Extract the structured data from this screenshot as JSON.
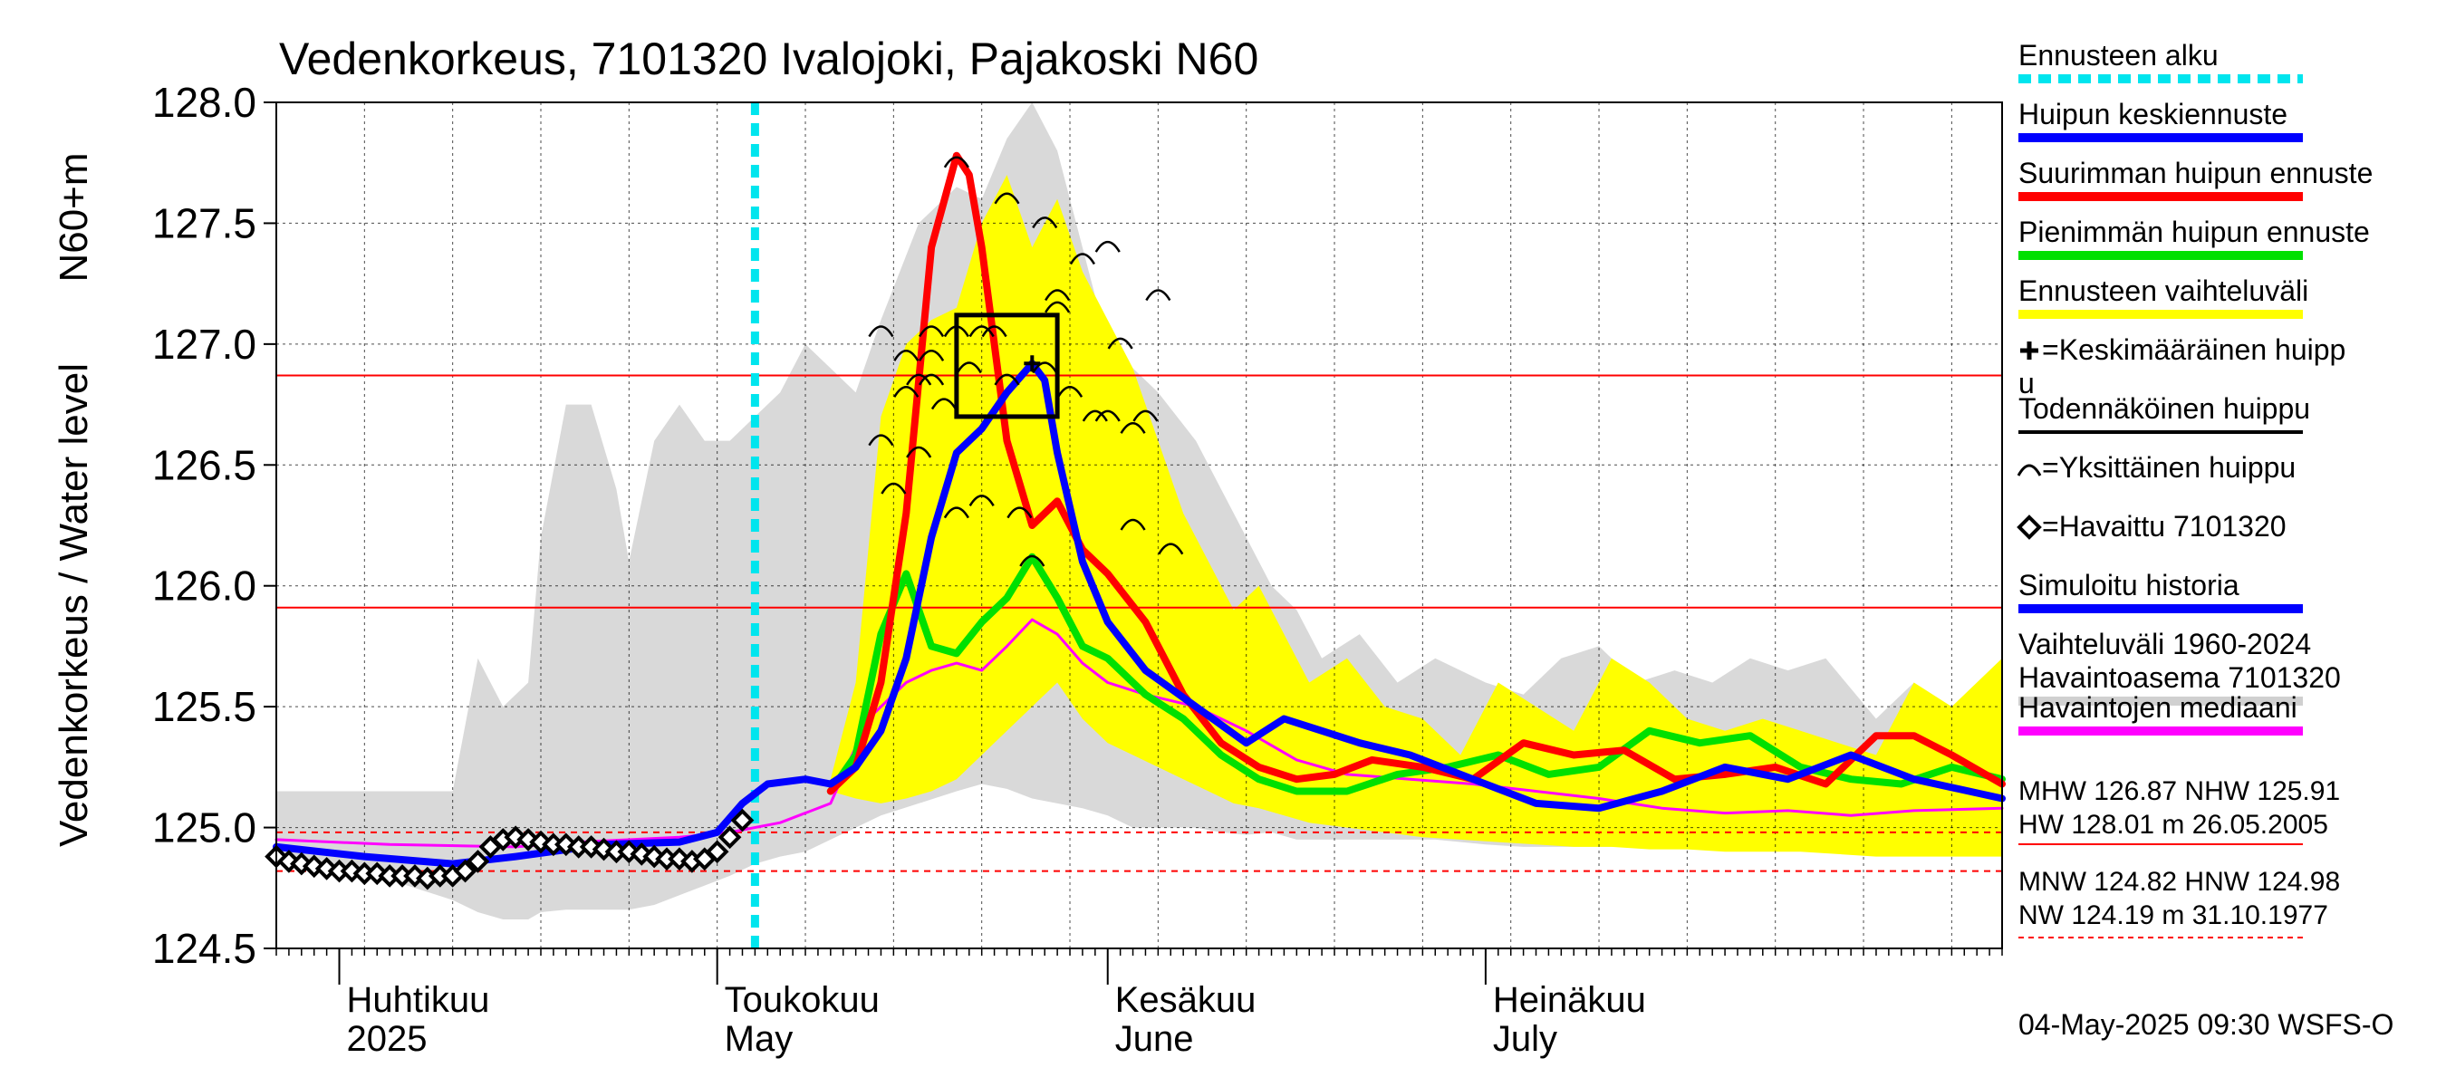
{
  "chart_data": {
    "type": "line",
    "title": "Vedenkorkeus, 7101320 Ivalojoki, Pajakoski N60",
    "ylabel": "Vedenkorkeus / Water level",
    "ylabel2": "N60+m",
    "ylim": [
      124.5,
      128.0
    ],
    "yticks": [
      "124.5",
      "125.0",
      "125.5",
      "126.0",
      "126.5",
      "127.0",
      "127.5",
      "128.0"
    ],
    "xlim": [
      "2025-03-27",
      "2025-08-11"
    ],
    "x_months": [
      {
        "fi": "Huhtikuu",
        "en": "2025",
        "date": "2025-04-01"
      },
      {
        "fi": "Toukokuu",
        "en": "May",
        "date": "2025-05-01"
      },
      {
        "fi": "Kesäkuu",
        "en": "June",
        "date": "2025-06-01"
      },
      {
        "fi": "Heinäkuu",
        "en": "July",
        "date": "2025-07-01"
      }
    ],
    "forecast_start": "2025-05-04",
    "reference_lines": [
      {
        "name": "MHW",
        "value": 126.87,
        "style": "solid"
      },
      {
        "name": "NHW",
        "value": 125.91,
        "style": "solid"
      },
      {
        "name": "MNW",
        "value": 124.82,
        "style": "dashed"
      },
      {
        "name": "HNW",
        "value": 124.98,
        "style": "dashed"
      }
    ],
    "historical_range": {
      "x": [
        "2025-03-27",
        "2025-04-04",
        "2025-04-10",
        "2025-04-12",
        "2025-04-14",
        "2025-04-16",
        "2025-04-17",
        "2025-04-19",
        "2025-04-21",
        "2025-04-23",
        "2025-04-24",
        "2025-04-26",
        "2025-04-28",
        "2025-04-30",
        "2025-05-02",
        "2025-05-04",
        "2025-05-06",
        "2025-05-08",
        "2025-05-10",
        "2025-05-12",
        "2025-05-14",
        "2025-05-17",
        "2025-05-20",
        "2025-05-22",
        "2025-05-24",
        "2025-05-26",
        "2025-05-28",
        "2025-05-30",
        "2025-06-01",
        "2025-06-03",
        "2025-06-05",
        "2025-06-08",
        "2025-06-10",
        "2025-06-12",
        "2025-06-14",
        "2025-06-16",
        "2025-06-18",
        "2025-06-21",
        "2025-06-24",
        "2025-06-27",
        "2025-07-01",
        "2025-07-04",
        "2025-07-07",
        "2025-07-10",
        "2025-07-13",
        "2025-07-16",
        "2025-07-19",
        "2025-07-22",
        "2025-07-25",
        "2025-07-28",
        "2025-08-01",
        "2025-08-04",
        "2025-08-07",
        "2025-08-11"
      ],
      "upper": [
        125.15,
        125.15,
        125.15,
        125.7,
        125.5,
        125.6,
        126.2,
        126.75,
        126.75,
        126.4,
        126.1,
        126.6,
        126.75,
        126.6,
        126.6,
        126.7,
        126.8,
        127.0,
        126.9,
        126.8,
        127.1,
        127.5,
        127.65,
        127.6,
        127.85,
        128.0,
        127.8,
        127.4,
        127.0,
        126.9,
        126.8,
        126.6,
        126.4,
        126.2,
        126.0,
        125.9,
        125.7,
        125.8,
        125.6,
        125.7,
        125.6,
        125.55,
        125.7,
        125.75,
        125.6,
        125.65,
        125.6,
        125.7,
        125.65,
        125.7,
        125.45,
        125.6,
        125.4,
        125.6
      ],
      "lower": [
        124.85,
        124.8,
        124.7,
        124.65,
        124.62,
        124.62,
        124.65,
        124.66,
        124.66,
        124.66,
        124.66,
        124.68,
        124.72,
        124.76,
        124.8,
        124.85,
        124.88,
        124.9,
        124.95,
        125.0,
        125.05,
        125.1,
        125.15,
        125.18,
        125.16,
        125.12,
        125.1,
        125.08,
        125.05,
        125.0,
        125.0,
        125.0,
        124.98,
        124.97,
        124.98,
        124.95,
        124.95,
        124.95,
        124.95,
        124.95,
        124.93,
        124.92,
        124.92,
        124.92,
        124.92,
        124.92,
        124.91,
        124.91,
        124.91,
        124.91,
        124.91,
        124.91,
        124.91,
        124.91
      ]
    },
    "forecast_range": {
      "x": [
        "2025-05-10",
        "2025-05-12",
        "2025-05-14",
        "2025-05-16",
        "2025-05-18",
        "2025-05-20",
        "2025-05-22",
        "2025-05-24",
        "2025-05-26",
        "2025-05-28",
        "2025-05-30",
        "2025-06-01",
        "2025-06-03",
        "2025-06-05",
        "2025-06-07",
        "2025-06-09",
        "2025-06-11",
        "2025-06-13",
        "2025-06-15",
        "2025-06-17",
        "2025-06-20",
        "2025-06-23",
        "2025-06-26",
        "2025-06-29",
        "2025-07-02",
        "2025-07-05",
        "2025-07-08",
        "2025-07-11",
        "2025-07-14",
        "2025-07-17",
        "2025-07-20",
        "2025-07-23",
        "2025-07-26",
        "2025-07-29",
        "2025-08-01",
        "2025-08-04",
        "2025-08-07",
        "2025-08-11"
      ],
      "upper": [
        125.2,
        125.6,
        126.7,
        127.0,
        127.1,
        127.15,
        127.5,
        127.7,
        127.4,
        127.6,
        127.3,
        127.1,
        126.9,
        126.6,
        126.3,
        126.1,
        125.9,
        126.0,
        125.8,
        125.6,
        125.7,
        125.5,
        125.45,
        125.3,
        125.6,
        125.5,
        125.4,
        125.7,
        125.6,
        125.45,
        125.4,
        125.45,
        125.4,
        125.35,
        125.3,
        125.6,
        125.5,
        125.7
      ],
      "lower": [
        125.15,
        125.12,
        125.1,
        125.12,
        125.15,
        125.2,
        125.3,
        125.4,
        125.5,
        125.6,
        125.45,
        125.35,
        125.3,
        125.25,
        125.2,
        125.15,
        125.1,
        125.08,
        125.05,
        125.02,
        125.0,
        124.98,
        124.96,
        124.95,
        124.94,
        124.93,
        124.92,
        124.92,
        124.91,
        124.91,
        124.9,
        124.9,
        124.9,
        124.89,
        124.88,
        124.88,
        124.88,
        124.88
      ]
    },
    "series": [
      {
        "name": "Havaittu 7101320",
        "role": "observed",
        "color": "#000000",
        "x": [
          "2025-03-27",
          "2025-03-28",
          "2025-03-29",
          "2025-03-30",
          "2025-03-31",
          "2025-04-01",
          "2025-04-02",
          "2025-04-03",
          "2025-04-04",
          "2025-04-05",
          "2025-04-06",
          "2025-04-07",
          "2025-04-08",
          "2025-04-09",
          "2025-04-10",
          "2025-04-11",
          "2025-04-12",
          "2025-04-13",
          "2025-04-14",
          "2025-04-15",
          "2025-04-16",
          "2025-04-17",
          "2025-04-18",
          "2025-04-19",
          "2025-04-20",
          "2025-04-21",
          "2025-04-22",
          "2025-04-23",
          "2025-04-24",
          "2025-04-25",
          "2025-04-26",
          "2025-04-27",
          "2025-04-28",
          "2025-04-29",
          "2025-04-30",
          "2025-05-01",
          "2025-05-02",
          "2025-05-03"
        ],
        "values": [
          124.88,
          124.86,
          124.85,
          124.84,
          124.83,
          124.82,
          124.82,
          124.81,
          124.81,
          124.8,
          124.8,
          124.8,
          124.79,
          124.8,
          124.8,
          124.82,
          124.86,
          124.92,
          124.95,
          124.96,
          124.95,
          124.94,
          124.93,
          124.93,
          124.92,
          124.92,
          124.91,
          124.9,
          124.9,
          124.89,
          124.88,
          124.87,
          124.87,
          124.86,
          124.87,
          124.9,
          124.96,
          125.03
        ]
      },
      {
        "name": "Vaihteluväli 1960-2024 Havaintoasema 7101320",
        "role": "range",
        "color": "#d9d9d9"
      },
      {
        "name": "Havaintojen mediaani",
        "role": "median",
        "color": "#ff00ff",
        "x": [
          "2025-03-27",
          "2025-04-05",
          "2025-04-15",
          "2025-04-20",
          "2025-04-28",
          "2025-05-02",
          "2025-05-06",
          "2025-05-10",
          "2025-05-13",
          "2025-05-16",
          "2025-05-18",
          "2025-05-20",
          "2025-05-22",
          "2025-05-24",
          "2025-05-26",
          "2025-05-28",
          "2025-05-30",
          "2025-06-01",
          "2025-06-04",
          "2025-06-08",
          "2025-06-12",
          "2025-06-16",
          "2025-06-20",
          "2025-06-25",
          "2025-06-30",
          "2025-07-05",
          "2025-07-10",
          "2025-07-15",
          "2025-07-20",
          "2025-07-25",
          "2025-07-30",
          "2025-08-04",
          "2025-08-11"
        ],
        "values": [
          124.95,
          124.93,
          124.92,
          124.94,
          124.96,
          124.98,
          125.02,
          125.1,
          125.45,
          125.6,
          125.65,
          125.68,
          125.65,
          125.75,
          125.86,
          125.8,
          125.68,
          125.6,
          125.55,
          125.5,
          125.4,
          125.28,
          125.22,
          125.2,
          125.18,
          125.15,
          125.12,
          125.08,
          125.06,
          125.07,
          125.05,
          125.07,
          125.08
        ]
      },
      {
        "name": "Simuloitu historia",
        "role": "simulated",
        "color": "#0000ff",
        "x": [
          "2025-03-27",
          "2025-04-03",
          "2025-04-10",
          "2025-04-15",
          "2025-04-22",
          "2025-04-28",
          "2025-05-01",
          "2025-05-03",
          "2025-05-05",
          "2025-05-08",
          "2025-05-10",
          "2025-05-12",
          "2025-05-14",
          "2025-05-16",
          "2025-05-18",
          "2025-05-20",
          "2025-05-22",
          "2025-05-24",
          "2025-05-26",
          "2025-05-27",
          "2025-05-28",
          "2025-05-30",
          "2025-06-01",
          "2025-06-04",
          "2025-06-08",
          "2025-06-12",
          "2025-06-15",
          "2025-06-18",
          "2025-06-21",
          "2025-06-25",
          "2025-06-30",
          "2025-07-05",
          "2025-07-10",
          "2025-07-15",
          "2025-07-20",
          "2025-07-25",
          "2025-07-30",
          "2025-08-04",
          "2025-08-11"
        ],
        "values": [
          124.92,
          124.88,
          124.85,
          124.88,
          124.93,
          124.94,
          124.98,
          125.1,
          125.18,
          125.2,
          125.18,
          125.25,
          125.4,
          125.7,
          126.2,
          126.55,
          126.65,
          126.8,
          126.92,
          126.85,
          126.55,
          126.1,
          125.85,
          125.65,
          125.5,
          125.35,
          125.45,
          125.4,
          125.35,
          125.3,
          125.2,
          125.1,
          125.08,
          125.15,
          125.25,
          125.2,
          125.3,
          125.2,
          125.12
        ]
      },
      {
        "name": "Huipun keskiennuste",
        "role": "mean_forecast",
        "color": "#0000ff"
      },
      {
        "name": "Suurimman huipun ennuste",
        "role": "max_forecast",
        "color": "#ff0000",
        "x": [
          "2025-05-10",
          "2025-05-12",
          "2025-05-14",
          "2025-05-16",
          "2025-05-18",
          "2025-05-20",
          "2025-05-21",
          "2025-05-22",
          "2025-05-24",
          "2025-05-26",
          "2025-05-28",
          "2025-05-30",
          "2025-06-01",
          "2025-06-04",
          "2025-06-07",
          "2025-06-10",
          "2025-06-13",
          "2025-06-16",
          "2025-06-19",
          "2025-06-22",
          "2025-06-26",
          "2025-06-30",
          "2025-07-04",
          "2025-07-08",
          "2025-07-12",
          "2025-07-16",
          "2025-07-20",
          "2025-07-24",
          "2025-07-28",
          "2025-08-01",
          "2025-08-04",
          "2025-08-07",
          "2025-08-11"
        ],
        "values": [
          125.15,
          125.25,
          125.6,
          126.3,
          127.4,
          127.78,
          127.7,
          127.4,
          126.6,
          126.25,
          126.35,
          126.15,
          126.05,
          125.85,
          125.55,
          125.35,
          125.25,
          125.2,
          125.22,
          125.28,
          125.25,
          125.2,
          125.35,
          125.3,
          125.32,
          125.2,
          125.22,
          125.25,
          125.18,
          125.38,
          125.38,
          125.3,
          125.18
        ]
      },
      {
        "name": "Pienimmän huipun ennuste",
        "role": "min_forecast",
        "color": "#00e000",
        "x": [
          "2025-05-10",
          "2025-05-12",
          "2025-05-14",
          "2025-05-16",
          "2025-05-18",
          "2025-05-20",
          "2025-05-22",
          "2025-05-24",
          "2025-05-26",
          "2025-05-28",
          "2025-05-30",
          "2025-06-01",
          "2025-06-04",
          "2025-06-07",
          "2025-06-10",
          "2025-06-13",
          "2025-06-16",
          "2025-06-20",
          "2025-06-24",
          "2025-06-28",
          "2025-07-02",
          "2025-07-06",
          "2025-07-10",
          "2025-07-14",
          "2025-07-18",
          "2025-07-22",
          "2025-07-26",
          "2025-07-30",
          "2025-08-03",
          "2025-08-07",
          "2025-08-11"
        ],
        "values": [
          125.15,
          125.3,
          125.8,
          126.05,
          125.75,
          125.72,
          125.85,
          125.95,
          126.12,
          125.95,
          125.75,
          125.7,
          125.55,
          125.45,
          125.3,
          125.2,
          125.15,
          125.15,
          125.22,
          125.25,
          125.3,
          125.22,
          125.25,
          125.4,
          125.35,
          125.38,
          125.25,
          125.2,
          125.18,
          125.25,
          125.2
        ]
      }
    ],
    "peak_box": {
      "x0": "2025-05-20",
      "x1": "2025-05-28",
      "y0": 126.7,
      "y1": 127.12
    },
    "mean_peak": {
      "x": "2025-05-26",
      "y": 126.92
    },
    "individual_peaks": [
      {
        "x": "2025-05-14",
        "y": 127.05
      },
      {
        "x": "2025-05-14",
        "y": 126.6
      },
      {
        "x": "2025-05-15",
        "y": 126.4
      },
      {
        "x": "2025-05-16",
        "y": 126.8
      },
      {
        "x": "2025-05-16",
        "y": 126.95
      },
      {
        "x": "2025-05-17",
        "y": 126.85
      },
      {
        "x": "2025-05-17",
        "y": 126.55
      },
      {
        "x": "2025-05-18",
        "y": 127.05
      },
      {
        "x": "2025-05-18",
        "y": 126.95
      },
      {
        "x": "2025-05-18",
        "y": 126.85
      },
      {
        "x": "2025-05-19",
        "y": 126.75
      },
      {
        "x": "2025-05-20",
        "y": 127.75
      },
      {
        "x": "2025-05-20",
        "y": 127.05
      },
      {
        "x": "2025-05-20",
        "y": 126.3
      },
      {
        "x": "2025-05-21",
        "y": 126.9
      },
      {
        "x": "2025-05-22",
        "y": 127.05
      },
      {
        "x": "2025-05-22",
        "y": 126.35
      },
      {
        "x": "2025-05-23",
        "y": 127.05
      },
      {
        "x": "2025-05-24",
        "y": 127.6
      },
      {
        "x": "2025-05-24",
        "y": 126.85
      },
      {
        "x": "2025-05-25",
        "y": 126.3
      },
      {
        "x": "2025-05-26",
        "y": 126.1
      },
      {
        "x": "2025-05-27",
        "y": 127.5
      },
      {
        "x": "2025-05-27",
        "y": 126.9
      },
      {
        "x": "2025-05-28",
        "y": 127.2
      },
      {
        "x": "2025-05-28",
        "y": 127.15
      },
      {
        "x": "2025-05-29",
        "y": 126.8
      },
      {
        "x": "2025-05-30",
        "y": 127.35
      },
      {
        "x": "2025-05-31",
        "y": 126.7
      },
      {
        "x": "2025-06-01",
        "y": 127.4
      },
      {
        "x": "2025-06-01",
        "y": 126.7
      },
      {
        "x": "2025-06-02",
        "y": 127.0
      },
      {
        "x": "2025-06-03",
        "y": 126.65
      },
      {
        "x": "2025-06-03",
        "y": 126.25
      },
      {
        "x": "2025-06-04",
        "y": 126.7
      },
      {
        "x": "2025-06-05",
        "y": 127.2
      },
      {
        "x": "2025-06-06",
        "y": 126.15
      }
    ],
    "legend": {
      "placement": "right",
      "items": [
        {
          "label": "Ennusteen alku",
          "kind": "dashed",
          "color": "#00e5ee"
        },
        {
          "label": "Huipun keskiennuste",
          "kind": "line",
          "color": "#0000ff"
        },
        {
          "label": "Suurimman huipun ennuste",
          "kind": "line",
          "color": "#ff0000"
        },
        {
          "label": "Pienimmän huipun ennuste",
          "kind": "line",
          "color": "#00e000"
        },
        {
          "label": "Ennusteen vaihteluväli",
          "kind": "line",
          "color": "#ffff00"
        },
        {
          "label": "=Keskimääräinen huipp",
          "label2": "u",
          "kind": "plus",
          "color": "#000000"
        },
        {
          "label": "Todennäköinen huippu",
          "kind": "line",
          "color": "#000000"
        },
        {
          "label": "=Yksittäinen huippu",
          "kind": "arc",
          "color": "#000000"
        },
        {
          "label": "=Havaittu 7101320",
          "kind": "diamond",
          "color": "#000000"
        },
        {
          "label": "Simuloitu historia",
          "kind": "line",
          "color": "#0000ff"
        },
        {
          "label": "Vaihteluväli 1960-2024",
          "label2": " Havaintoasema 7101320",
          "kind": "line",
          "color": "#d0d0d0"
        },
        {
          "label": "Havaintojen mediaani",
          "kind": "line",
          "color": "#ff00ff"
        }
      ]
    },
    "stats": {
      "line1": "MHW 126.87 NHW 125.91",
      "line2": "HW 128.01 m 26.05.2005",
      "line3": "MNW 124.82 HNW 124.98",
      "line4": "NW 124.19 m 31.10.1977"
    },
    "footer": "04-May-2025 09:30 WSFS-O"
  }
}
